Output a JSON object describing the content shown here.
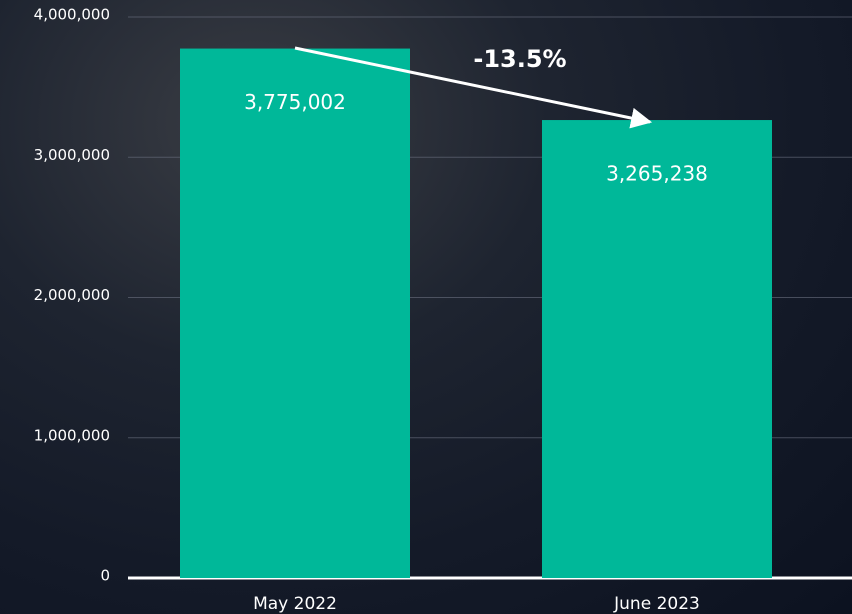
{
  "chart_data": {
    "type": "bar",
    "categories": [
      "May 2022",
      "June 2023"
    ],
    "values": [
      3775002,
      3265238
    ],
    "value_labels": [
      "3,775,002",
      "3,265,238"
    ],
    "color": "#00b899",
    "ylim": [
      0,
      4000000
    ],
    "yticks": [
      0,
      {
        "value": 1000000,
        "label": "1,000,000"
      },
      {
        "value": 2000000,
        "label": "2,000,000"
      },
      {
        "value": 3000000,
        "label": "3,000,000"
      },
      {
        "value": 4000000,
        "label": "4,000,000"
      }
    ],
    "grid": true,
    "annotation": "-13.5%"
  }
}
